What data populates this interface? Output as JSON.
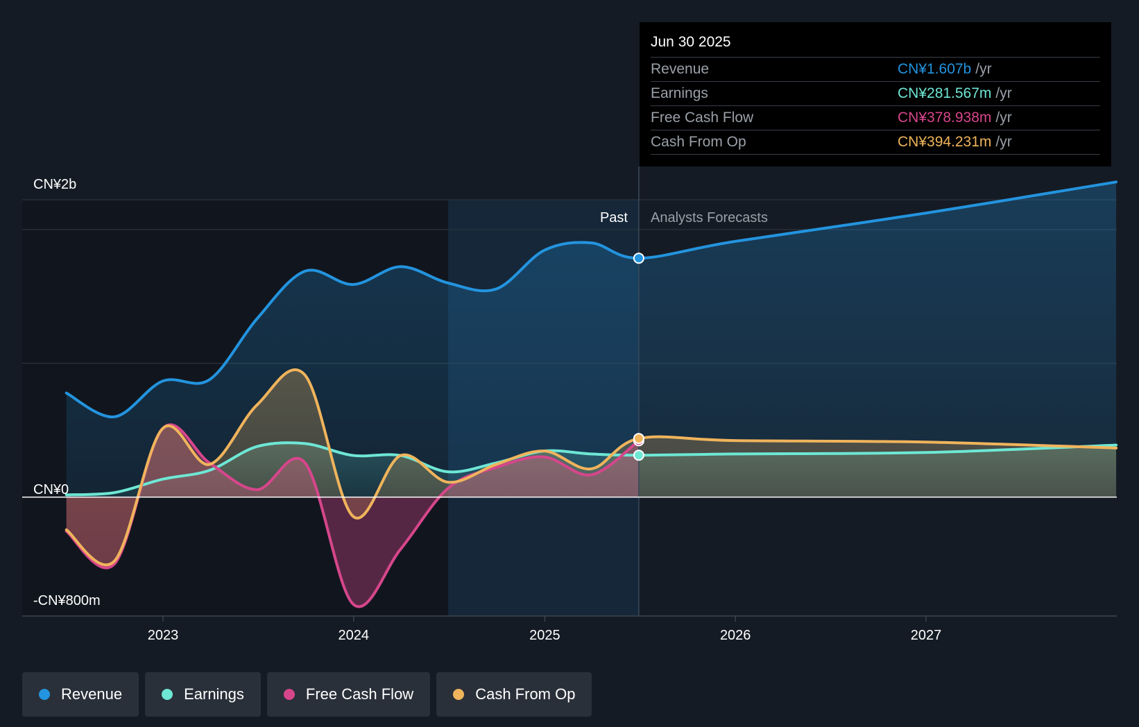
{
  "tooltip": {
    "date": "Jun 30 2025",
    "rows": [
      {
        "label": "Revenue",
        "value": "CN¥1.607b",
        "unit": "/yr",
        "color": "#2394df"
      },
      {
        "label": "Earnings",
        "value": "CN¥281.567m",
        "unit": "/yr",
        "color": "#6ee7d5"
      },
      {
        "label": "Free Cash Flow",
        "value": "CN¥378.938m",
        "unit": "/yr",
        "color": "#d6468b"
      },
      {
        "label": "Cash From Op",
        "value": "CN¥394.231m",
        "unit": "/yr",
        "color": "#f0b45c"
      }
    ]
  },
  "labels": {
    "past": "Past",
    "forecast": "Analysts Forecasts",
    "y_top": "CN¥2b",
    "y_zero": "CN¥0",
    "y_bottom": "-CN¥800m"
  },
  "legend": [
    {
      "label": "Revenue",
      "color": "#2394df"
    },
    {
      "label": "Earnings",
      "color": "#6ee7d5"
    },
    {
      "label": "Free Cash Flow",
      "color": "#d6468b"
    },
    {
      "label": "Cash From Op",
      "color": "#f0b45c"
    }
  ],
  "chart_data": {
    "type": "area",
    "x_ticks": [
      "2023",
      "2024",
      "2025",
      "2026",
      "2027"
    ],
    "ylim": [
      -800,
      2000
    ],
    "y_unit": "CN¥ millions",
    "divider_date": "2025-06-30",
    "past_shade_start": "2024-06-30",
    "series": [
      {
        "name": "Revenue",
        "color": "#2394df",
        "points": [
          [
            "2022-06-30",
            700
          ],
          [
            "2022-09-30",
            540
          ],
          [
            "2022-12-31",
            780
          ],
          [
            "2023-03-31",
            790
          ],
          [
            "2023-06-30",
            1200
          ],
          [
            "2023-09-30",
            1520
          ],
          [
            "2023-12-31",
            1430
          ],
          [
            "2024-03-31",
            1550
          ],
          [
            "2024-06-30",
            1440
          ],
          [
            "2024-09-30",
            1400
          ],
          [
            "2024-12-31",
            1660
          ],
          [
            "2025-03-31",
            1710
          ],
          [
            "2025-06-30",
            1607
          ],
          [
            "2025-12-31",
            1720
          ],
          [
            "2026-12-31",
            1910
          ],
          [
            "2027-12-31",
            2120
          ]
        ]
      },
      {
        "name": "Earnings",
        "color": "#6ee7d5",
        "points": [
          [
            "2022-06-30",
            15
          ],
          [
            "2022-09-30",
            30
          ],
          [
            "2022-12-31",
            120
          ],
          [
            "2023-03-31",
            180
          ],
          [
            "2023-06-30",
            340
          ],
          [
            "2023-09-30",
            360
          ],
          [
            "2023-12-31",
            280
          ],
          [
            "2024-03-31",
            280
          ],
          [
            "2024-06-30",
            170
          ],
          [
            "2024-09-30",
            230
          ],
          [
            "2024-12-31",
            310
          ],
          [
            "2025-03-31",
            290
          ],
          [
            "2025-06-30",
            281.567
          ],
          [
            "2025-12-31",
            290
          ],
          [
            "2026-12-31",
            300
          ],
          [
            "2027-12-31",
            350
          ]
        ]
      },
      {
        "name": "Free Cash Flow",
        "color": "#d6468b",
        "points": [
          [
            "2022-06-30",
            -230
          ],
          [
            "2022-09-30",
            -450
          ],
          [
            "2022-12-31",
            460
          ],
          [
            "2023-03-31",
            230
          ],
          [
            "2023-06-30",
            50
          ],
          [
            "2023-09-30",
            230
          ],
          [
            "2023-12-31",
            -720
          ],
          [
            "2024-03-31",
            -350
          ],
          [
            "2024-06-30",
            60
          ],
          [
            "2024-09-30",
            200
          ],
          [
            "2024-12-31",
            270
          ],
          [
            "2025-03-31",
            150
          ],
          [
            "2025-06-30",
            378.938
          ]
        ]
      },
      {
        "name": "Cash From Op",
        "color": "#f0b45c",
        "points": [
          [
            "2022-06-30",
            -220
          ],
          [
            "2022-09-30",
            -430
          ],
          [
            "2022-12-31",
            460
          ],
          [
            "2023-03-31",
            220
          ],
          [
            "2023-06-30",
            620
          ],
          [
            "2023-09-30",
            820
          ],
          [
            "2023-12-31",
            -130
          ],
          [
            "2024-03-31",
            280
          ],
          [
            "2024-06-30",
            100
          ],
          [
            "2024-09-30",
            220
          ],
          [
            "2024-12-31",
            310
          ],
          [
            "2025-03-31",
            190
          ],
          [
            "2025-06-30",
            394.231
          ],
          [
            "2025-12-31",
            380
          ],
          [
            "2026-12-31",
            370
          ],
          [
            "2027-12-31",
            330
          ]
        ]
      }
    ]
  }
}
